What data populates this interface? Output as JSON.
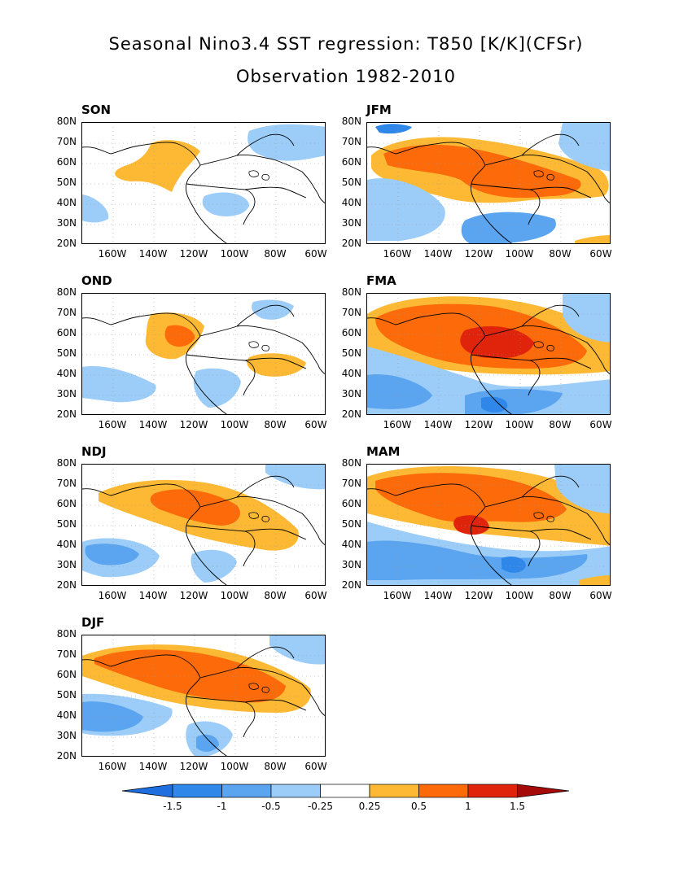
{
  "title": {
    "line1": "Seasonal Nino3.4 SST regression: T850 [K/K](CFSr)",
    "line2": "Observation 1982-2010"
  },
  "y_ticks": [
    "80N",
    "70N",
    "60N",
    "50N",
    "40N",
    "30N",
    "20N"
  ],
  "x_ticks": [
    "160W",
    "140W",
    "120W",
    "100W",
    "80W",
    "60W"
  ],
  "panels": [
    {
      "label": "SON",
      "color": "#ffffff"
    },
    {
      "label": "JFM",
      "color": "#ffffff"
    },
    {
      "label": "OND",
      "color": "#ffffff"
    },
    {
      "label": "FMA",
      "color": "#ffffff"
    },
    {
      "label": "NDJ",
      "color": "#ffffff"
    },
    {
      "label": "MAM",
      "color": "#ffffff"
    },
    {
      "label": "DJF",
      "color": "#ffffff"
    }
  ],
  "colorbar": {
    "ticks": [
      "-1.5",
      "-1",
      "-0.5",
      "-0.25",
      "0.25",
      "0.5",
      "1",
      "1.5"
    ],
    "colors": [
      "#1e6ee0",
      "#2f87ea",
      "#5aa4f0",
      "#9ccdf8",
      "#ffffff",
      "#fdb933",
      "#fc6a0a",
      "#e0240c",
      "#a60a08"
    ]
  },
  "palette": {
    "dark_blue": "#2f87ea",
    "mid_blue": "#5aa4f0",
    "light_blue": "#9ccdf8",
    "yellow": "#fdb933",
    "orange": "#fc6a0a",
    "red": "#e0240c"
  }
}
